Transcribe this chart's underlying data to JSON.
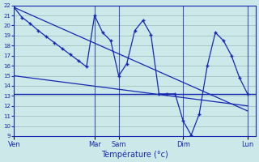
{
  "xlabel": "Température (°c)",
  "ylim": [
    9,
    22
  ],
  "yticks": [
    9,
    10,
    11,
    12,
    13,
    14,
    15,
    16,
    17,
    18,
    19,
    20,
    21,
    22
  ],
  "bg_color": "#cce8e8",
  "line_color": "#1428b4",
  "grid_color": "#99bbbb",
  "day_labels": [
    "Ven",
    "Mar",
    "Sam",
    "Dim",
    "Lun"
  ],
  "day_positions": [
    0,
    10,
    13,
    21,
    29
  ],
  "xlim": [
    0,
    30
  ],
  "series1_x": [
    0,
    1,
    2,
    3,
    4,
    5,
    6,
    7,
    8,
    9,
    10,
    11,
    12,
    13,
    14,
    15,
    16,
    17,
    18,
    19,
    20,
    21,
    22,
    23,
    24,
    25,
    26,
    27,
    28,
    29
  ],
  "series1_y": [
    21.8,
    20.8,
    20.2,
    19.5,
    18.9,
    18.3,
    17.7,
    17.1,
    16.5,
    15.9,
    21.0,
    19.3,
    18.5,
    15.0,
    16.2,
    19.5,
    20.5,
    19.1,
    13.2,
    13.2,
    13.2,
    10.5,
    9.1,
    11.2,
    16.0,
    19.3,
    18.5,
    17.0,
    14.8,
    13.2
  ],
  "trend1_x": [
    0,
    29
  ],
  "trend1_y": [
    21.8,
    11.5
  ],
  "trend2_x": [
    0,
    29
  ],
  "trend2_y": [
    15.0,
    12.0
  ],
  "hline_y": 13.2,
  "marker_x": [
    0,
    1,
    3,
    5,
    7,
    9,
    10,
    11,
    13,
    15,
    16,
    17,
    18,
    21,
    22,
    23,
    24,
    25,
    26,
    28,
    29
  ],
  "marker_y": [
    21.8,
    20.8,
    19.5,
    18.3,
    17.1,
    15.9,
    21.0,
    19.3,
    15.0,
    19.5,
    20.5,
    19.1,
    13.2,
    10.5,
    9.1,
    11.2,
    16.0,
    19.3,
    18.5,
    14.8,
    13.2
  ]
}
